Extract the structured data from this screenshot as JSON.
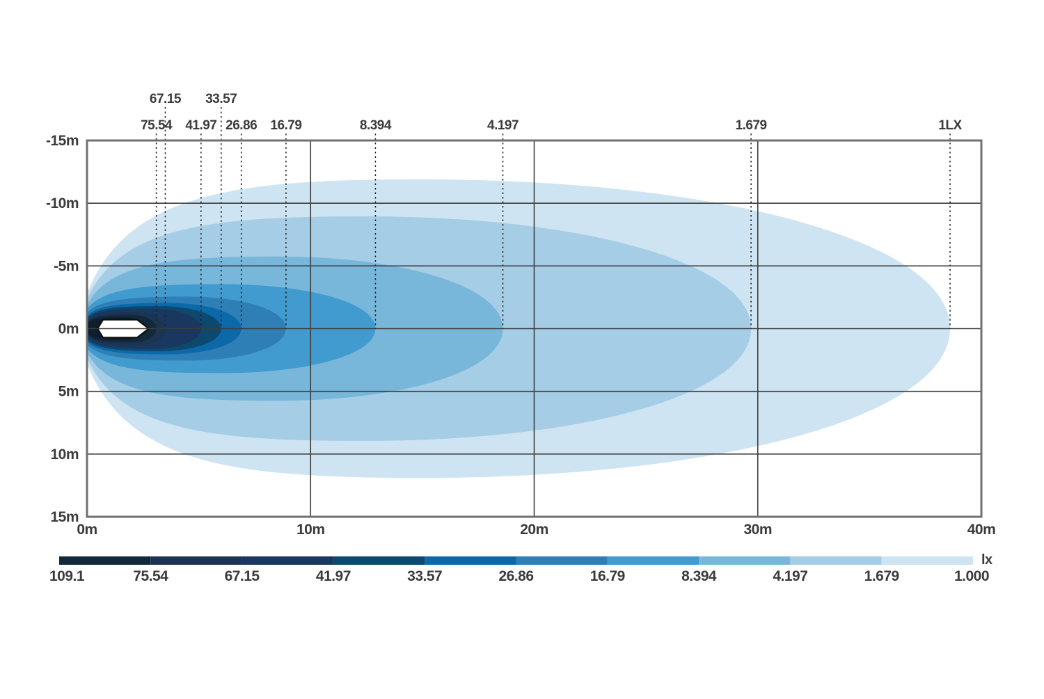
{
  "chart_data": {
    "type": "isolux-contour",
    "description": "Beam pattern / illuminance (lux) contour diagram of a lamp",
    "x_range": [
      0,
      40
    ],
    "y_range": [
      -15,
      15
    ],
    "x_ticks": [
      {
        "value": 0,
        "label": "0m"
      },
      {
        "value": 10,
        "label": "10m"
      },
      {
        "value": 20,
        "label": "20m"
      },
      {
        "value": 30,
        "label": "30m"
      },
      {
        "value": 40,
        "label": "40m"
      }
    ],
    "y_ticks": [
      {
        "value": -15,
        "label": "-15m"
      },
      {
        "value": -10,
        "label": "-10m"
      },
      {
        "value": -5,
        "label": "-5m"
      },
      {
        "value": 0,
        "label": "0m"
      },
      {
        "value": 5,
        "label": "5m"
      },
      {
        "value": 10,
        "label": "10m"
      },
      {
        "value": 15,
        "label": "15m"
      }
    ],
    "grid_x_values": [
      10,
      20,
      30
    ],
    "grid_y_values": [
      -10,
      -5,
      0,
      5,
      10
    ],
    "contours": [
      {
        "level": 1.0,
        "label": "1LX",
        "label_row": "lower",
        "reach_m": 38.6,
        "half_height_m": 11.9,
        "widest_at_m": 15.0,
        "left_half_m": 2.8,
        "color": "#cfe4f2"
      },
      {
        "level": 1.679,
        "label": "1.679",
        "label_row": "lower",
        "reach_m": 29.7,
        "half_height_m": 8.95,
        "widest_at_m": 12.5,
        "left_half_m": 2.35,
        "color": "#a5cde6"
      },
      {
        "level": 4.197,
        "label": "4.197",
        "label_row": "lower",
        "reach_m": 18.6,
        "half_height_m": 5.75,
        "widest_at_m": 8.5,
        "left_half_m": 1.9,
        "color": "#79b7da"
      },
      {
        "level": 8.394,
        "label": "8.394",
        "label_row": "lower",
        "reach_m": 12.9,
        "half_height_m": 3.55,
        "widest_at_m": 6.0,
        "left_half_m": 1.55,
        "color": "#429bce"
      },
      {
        "level": 16.79,
        "label": "16.79",
        "label_row": "lower",
        "reach_m": 8.9,
        "half_height_m": 2.55,
        "widest_at_m": 4.5,
        "left_half_m": 1.25,
        "color": "#2e7fb5"
      },
      {
        "level": 26.86,
        "label": "26.86",
        "label_row": "lower",
        "reach_m": 6.9,
        "half_height_m": 2.05,
        "widest_at_m": 3.6,
        "left_half_m": 1.0,
        "color": "#0c69a9"
      },
      {
        "level": 33.57,
        "label": "33.57",
        "label_row": "upper",
        "reach_m": 6.0,
        "half_height_m": 1.8,
        "widest_at_m": 3.2,
        "left_half_m": 0.85,
        "color": "#0d486f"
      },
      {
        "level": 41.97,
        "label": "41.97",
        "label_row": "lower",
        "reach_m": 5.1,
        "half_height_m": 1.6,
        "widest_at_m": 2.9,
        "left_half_m": 0.72,
        "color": "#19375f"
      },
      {
        "level": 67.15,
        "label": "67.15",
        "label_row": "upper",
        "reach_m": 3.5,
        "half_height_m": 1.3,
        "widest_at_m": 2.3,
        "left_half_m": 0.55,
        "color": "#1a3451"
      },
      {
        "level": 75.54,
        "label": "75.54",
        "label_row": "lower",
        "reach_m": 3.1,
        "half_height_m": 1.1,
        "widest_at_m": 2.0,
        "left_half_m": 0.45,
        "color": "#12293c"
      },
      {
        "level": 109.1,
        "label": "",
        "label_row": "none",
        "reach_m": 2.6,
        "half_height_m": 0.9,
        "widest_at_m": 1.7,
        "left_half_m": 0.35,
        "color": "#0d1f2f"
      }
    ],
    "legend": {
      "unit_label": "lx",
      "boundary_labels": [
        "109.1",
        "75.54",
        "67.15",
        "41.97",
        "33.57",
        "26.86",
        "16.79",
        "8.394",
        "4.197",
        "1.679",
        "1.000"
      ],
      "segment_colors": [
        "#12293c",
        "#1a3451",
        "#19375f",
        "#0d486f",
        "#0c69a9",
        "#2e7fb5",
        "#429bce",
        "#79b7da",
        "#a5cde6",
        "#cfe4f2"
      ]
    },
    "colors": {
      "frame": "#707070",
      "grid": "#3d3d3d",
      "marker_line": "#222222",
      "text": "#3b3b3b",
      "lamp_fill": "#ffffff",
      "lamp_stroke": "#111111",
      "background": "#ffffff"
    }
  }
}
